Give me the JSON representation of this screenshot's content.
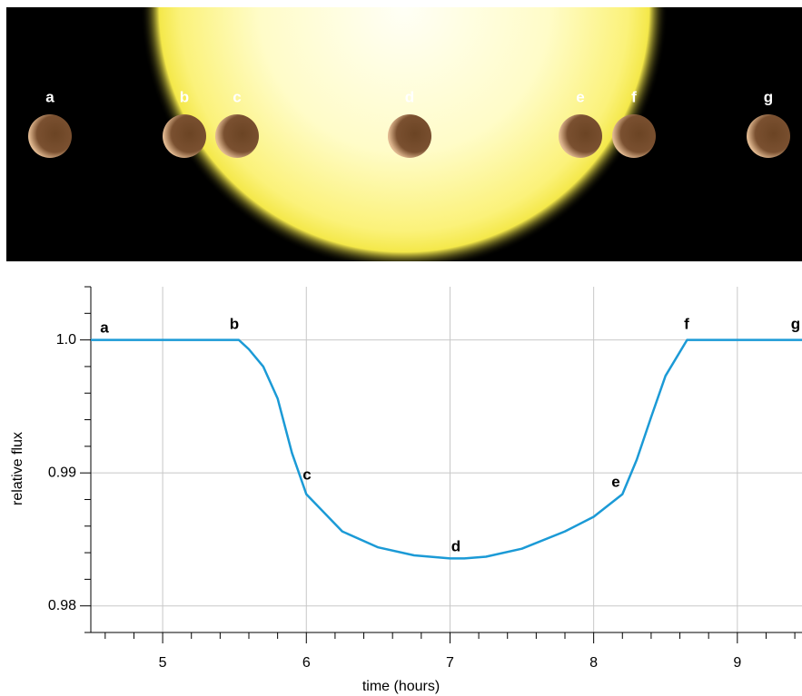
{
  "chart_data": {
    "type": "line",
    "annotations": [
      "a",
      "b",
      "c",
      "d",
      "e",
      "f",
      "g"
    ],
    "xlabel": "time (hours)",
    "ylabel": "relative flux",
    "x": [
      4.5,
      5.0,
      5.53,
      5.6,
      5.7,
      5.8,
      5.9,
      6.0,
      6.25,
      6.5,
      6.75,
      7.0,
      7.1,
      7.25,
      7.5,
      7.8,
      8.0,
      8.2,
      8.3,
      8.4,
      8.5,
      8.65,
      9.0,
      9.45
    ],
    "series": [
      {
        "name": "relative flux",
        "color": "#1b9ad6",
        "values": [
          1.0,
          1.0,
          1.0,
          0.9993,
          0.998,
          0.9956,
          0.9915,
          0.9884,
          0.9856,
          0.9844,
          0.9838,
          0.98357,
          0.98357,
          0.9837,
          0.9843,
          0.9856,
          0.9867,
          0.9884,
          0.991,
          0.9942,
          0.9973,
          1.0,
          1.0,
          1.0
        ]
      }
    ],
    "xlim": [
      4.5,
      9.45
    ],
    "ylim": [
      0.978,
      1.004
    ],
    "xticks": [
      5,
      6,
      7,
      8,
      9
    ],
    "xminorticks": [
      4.6,
      4.8,
      5.2,
      5.4,
      5.6,
      5.8,
      6.2,
      6.4,
      6.6,
      6.8,
      7.2,
      7.4,
      7.6,
      7.8,
      8.2,
      8.4,
      8.6,
      8.8,
      9.2,
      9.4
    ],
    "yticks": [
      0.98,
      0.99,
      {
        "value": 1.0,
        "label": "1.0"
      }
    ],
    "yminorticks": [
      0.978,
      0.982,
      0.984,
      0.986,
      0.988,
      0.992,
      0.994,
      0.996,
      0.998,
      1.002,
      1.004
    ],
    "grid": true
  }
}
